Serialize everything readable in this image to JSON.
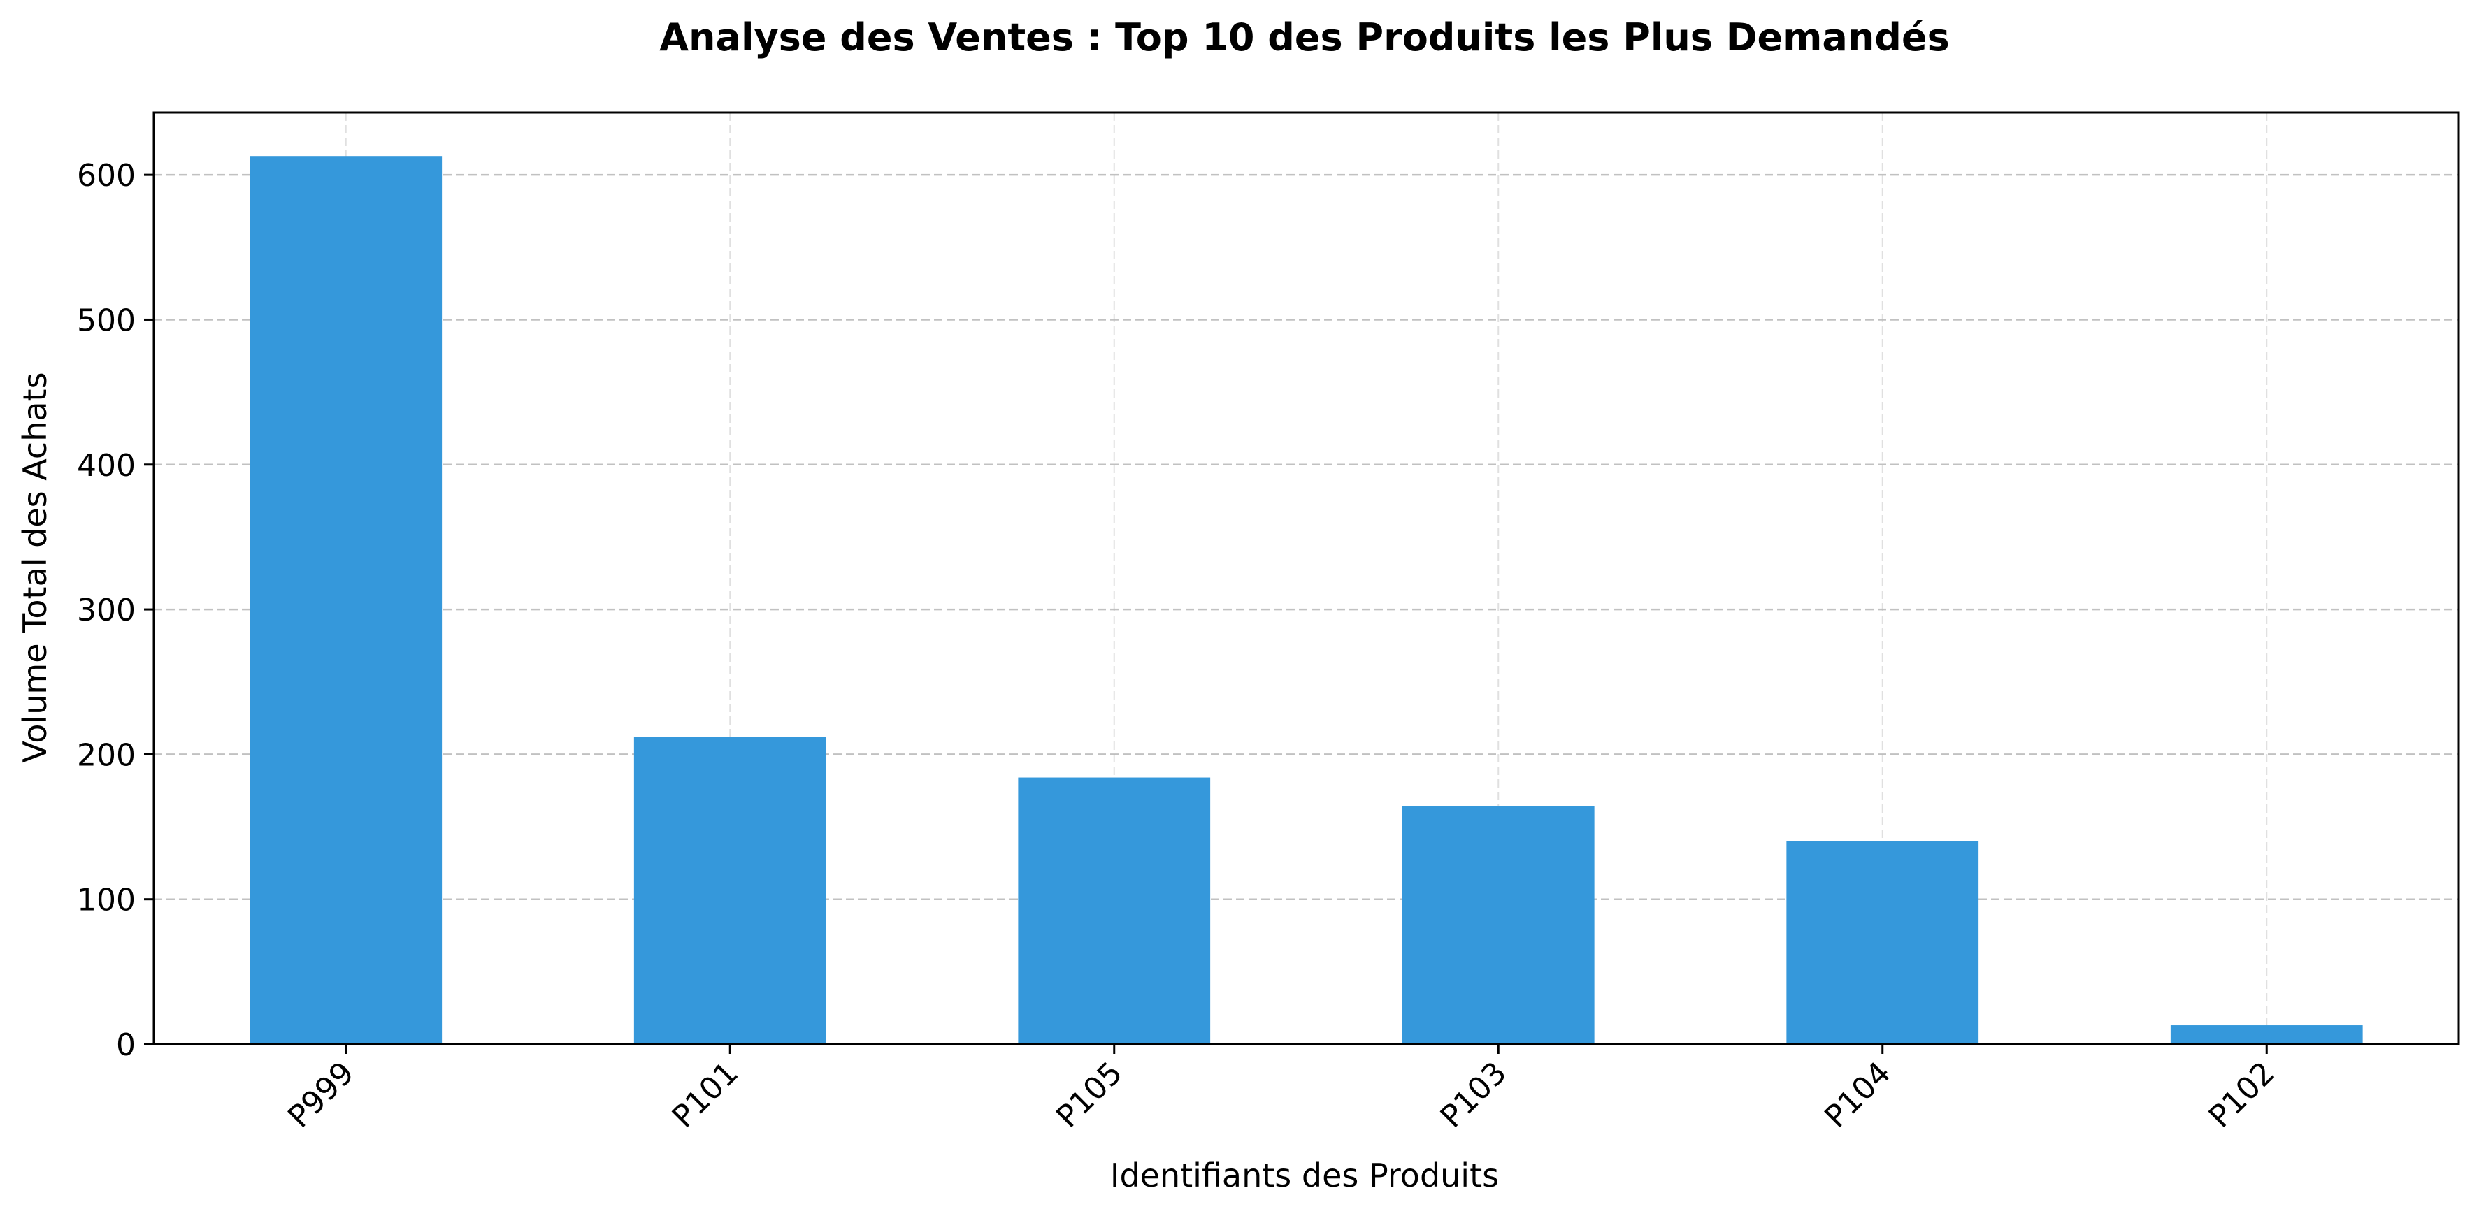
{
  "chart_data": {
    "type": "bar",
    "title": "Analyse des Ventes : Top 10 des Produits les Plus Demandés",
    "xlabel": "Identifiants des Produits",
    "ylabel": "Volume Total des Achats",
    "categories": [
      "P999",
      "P101",
      "P105",
      "P103",
      "P104",
      "P102"
    ],
    "values": [
      613,
      212,
      184,
      164,
      140,
      13
    ],
    "ylim": [
      0,
      643
    ],
    "yticks": [
      0,
      100,
      200,
      300,
      400,
      500,
      600
    ],
    "grid": true,
    "legend": "none",
    "colors": {
      "bar": "#3598db",
      "grid": "#bbbbbb",
      "axis": "#000000"
    }
  }
}
